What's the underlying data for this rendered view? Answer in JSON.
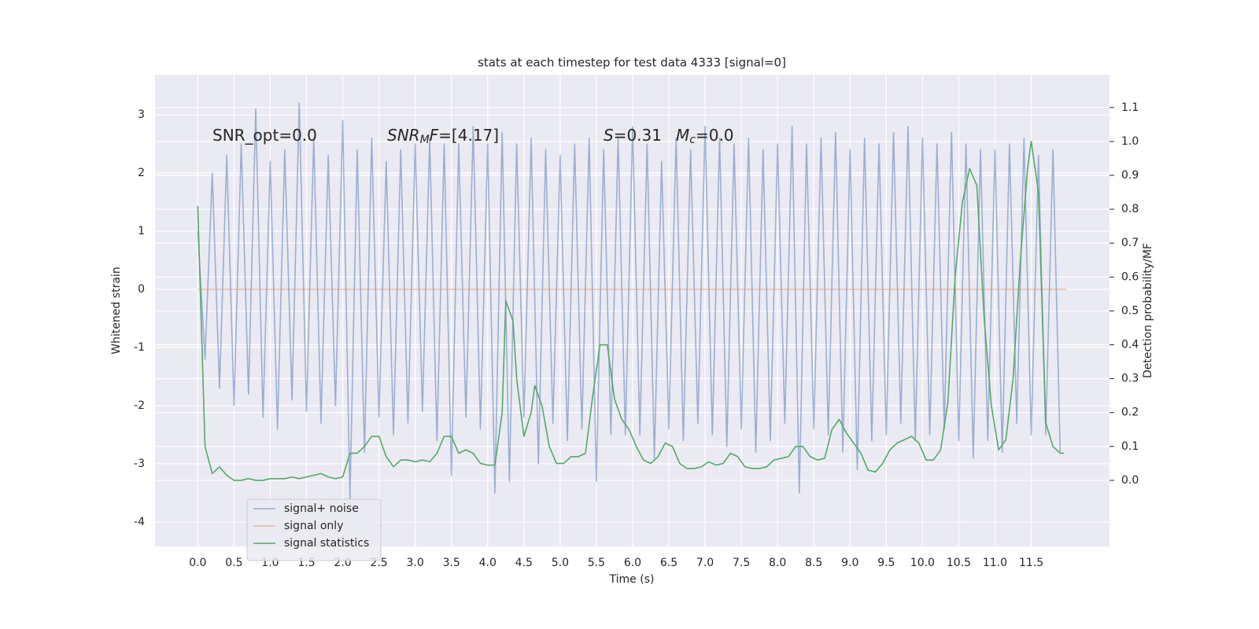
{
  "chart_data": {
    "type": "line",
    "title": "stats at each timestep for test data 4333 [signal=0]",
    "x_label": "Time (s)",
    "y_label": "Whitened strain",
    "y2_label": "Detection probability/MF",
    "grid": true,
    "legend": "lower left",
    "xlim": [
      -0.59,
      12.58
    ],
    "ylim": [
      -4.42,
      3.69
    ],
    "y2lim": [
      -0.195,
      1.197
    ],
    "xticks": [
      {
        "value": 0,
        "label": "0.0"
      },
      {
        "value": 0.5,
        "label": "0.5"
      },
      {
        "value": 1,
        "label": "1.0"
      },
      {
        "value": 1.5,
        "label": "1.5"
      },
      {
        "value": 2,
        "label": "2.0"
      },
      {
        "value": 2.5,
        "label": "2.5"
      },
      {
        "value": 3,
        "label": "3.0"
      },
      {
        "value": 3.5,
        "label": "3.5"
      },
      {
        "value": 4,
        "label": "4.0"
      },
      {
        "value": 4.5,
        "label": "4.5"
      },
      {
        "value": 5,
        "label": "5.0"
      },
      {
        "value": 5.5,
        "label": "5.5"
      },
      {
        "value": 6,
        "label": "6.0"
      },
      {
        "value": 6.5,
        "label": "6.5"
      },
      {
        "value": 7,
        "label": "7.0"
      },
      {
        "value": 7.5,
        "label": "7.5"
      },
      {
        "value": 8,
        "label": "8.0"
      },
      {
        "value": 8.5,
        "label": "8.5"
      },
      {
        "value": 9,
        "label": "9.0"
      },
      {
        "value": 9.5,
        "label": "9.5"
      },
      {
        "value": 10,
        "label": "10.0"
      },
      {
        "value": 10.5,
        "label": "10.5"
      },
      {
        "value": 11,
        "label": "11.0"
      },
      {
        "value": 11.5,
        "label": "11.5"
      }
    ],
    "yticks": [
      -4,
      -3,
      -2,
      -1,
      0,
      1,
      2,
      3
    ],
    "y2ticks": [
      {
        "value": 0,
        "label": "0.0"
      },
      {
        "value": 0.1,
        "label": "0.1"
      },
      {
        "value": 0.2,
        "label": "0.2"
      },
      {
        "value": 0.3,
        "label": "0.3"
      },
      {
        "value": 0.4,
        "label": "0.4"
      },
      {
        "value": 0.5,
        "label": "0.5"
      },
      {
        "value": 0.6,
        "label": "0.6"
      },
      {
        "value": 0.7,
        "label": "0.7"
      },
      {
        "value": 0.8,
        "label": "0.8"
      },
      {
        "value": 0.9,
        "label": "0.9"
      },
      {
        "value": 1,
        "label": "1.0"
      },
      {
        "value": 1.1,
        "label": "1.1"
      }
    ],
    "annotations": [
      [
        {
          "text": "SNR_opt=0.0"
        }
      ],
      [
        {
          "text": "SNR",
          "italic": true
        },
        {
          "text": "M",
          "italic": true,
          "sub": true
        },
        {
          "text": "F",
          "italic": true
        },
        {
          "text": "=[4.17]"
        }
      ],
      [
        {
          "text": "S",
          "italic": true
        },
        {
          "text": "=0.31"
        }
      ],
      [
        {
          "text": "M",
          "italic": true
        },
        {
          "text": "c",
          "italic": true,
          "sub": true
        },
        {
          "text": "=0.0"
        }
      ]
    ],
    "series": [
      {
        "name": "signal+ noise",
        "color": "#4c72b0",
        "opacity": 0.5,
        "x": [
          0,
          0.1,
          0.2,
          0.3,
          0.4,
          0.5,
          0.6,
          0.7,
          0.8,
          0.9,
          1,
          1.1,
          1.2,
          1.3,
          1.4,
          1.5,
          1.6,
          1.7,
          1.8,
          1.9,
          2,
          2.1,
          2.2,
          2.3,
          2.4,
          2.5,
          2.6,
          2.7,
          2.8,
          2.9,
          3,
          3.1,
          3.2,
          3.3,
          3.4,
          3.5,
          3.6,
          3.7,
          3.8,
          3.9,
          4,
          4.1,
          4.2,
          4.3,
          4.4,
          4.5,
          4.6,
          4.7,
          4.8,
          4.9,
          5,
          5.1,
          5.2,
          5.3,
          5.4,
          5.5,
          5.6,
          5.7,
          5.8,
          5.9,
          6,
          6.1,
          6.2,
          6.3,
          6.4,
          6.5,
          6.6,
          6.7,
          6.8,
          6.9,
          7,
          7.1,
          7.2,
          7.3,
          7.4,
          7.5,
          7.6,
          7.7,
          7.8,
          7.9,
          8,
          8.1,
          8.2,
          8.3,
          8.4,
          8.5,
          8.6,
          8.7,
          8.8,
          8.9,
          9,
          9.1,
          9.2,
          9.3,
          9.4,
          9.5,
          9.6,
          9.7,
          9.8,
          9.9,
          10,
          10.1,
          10.2,
          10.3,
          10.4,
          10.5,
          10.6,
          10.7,
          10.8,
          10.9,
          11,
          11.1,
          11.2,
          11.3,
          11.4,
          11.5,
          11.6,
          11.7,
          11.8,
          11.9
        ],
        "values": [
          1.0,
          -1.2,
          2.0,
          -1.7,
          2.3,
          -2.0,
          2.5,
          -1.8,
          3.1,
          -2.2,
          2.2,
          -2.4,
          2.4,
          -1.9,
          3.2,
          -2.1,
          2.6,
          -2.3,
          2.3,
          -2.0,
          2.9,
          -3.6,
          2.4,
          -2.8,
          2.6,
          -2.2,
          2.2,
          -2.5,
          2.4,
          -2.3,
          2.5,
          -2.1,
          2.6,
          -2.6,
          2.5,
          -3.2,
          2.5,
          -2.2,
          2.8,
          -2.4,
          2.5,
          -3.5,
          2.7,
          -3.3,
          2.5,
          -2.2,
          2.6,
          -3.0,
          2.4,
          -2.3,
          2.3,
          -2.6,
          2.5,
          -2.4,
          2.6,
          -3.3,
          2.4,
          -2.5,
          2.6,
          -2.5,
          2.8,
          -2.5,
          2.5,
          -2.9,
          2.2,
          -2.4,
          2.6,
          -2.6,
          2.4,
          -2.3,
          2.8,
          -2.5,
          2.6,
          -2.7,
          2.5,
          -2.4,
          2.6,
          -2.8,
          2.4,
          -2.6,
          2.5,
          -2.3,
          2.8,
          -3.5,
          2.5,
          -2.4,
          2.6,
          -2.5,
          2.7,
          -2.8,
          2.4,
          -3.1,
          2.6,
          -2.6,
          2.5,
          -2.5,
          2.7,
          -2.3,
          2.8,
          -2.6,
          2.6,
          -2.5,
          2.5,
          -2.4,
          2.7,
          -2.6,
          2.5,
          -2.9,
          2.4,
          -2.6,
          2.4,
          -2.8,
          2.5,
          -2.3,
          2.6,
          -2.5,
          2.3,
          -2.5,
          2.4,
          -2.8
        ]
      },
      {
        "name": "signal only",
        "color": "#dd8452",
        "opacity": 0.5,
        "x": [
          0,
          11.99
        ],
        "values": [
          0,
          0
        ]
      },
      {
        "name": "signal statistics",
        "color": "#55a868",
        "opacity": 1,
        "axis": "y2",
        "x": [
          0,
          0.1,
          0.2,
          0.3,
          0.4,
          0.5,
          0.6,
          0.7,
          0.8,
          0.9,
          1,
          1.1,
          1.2,
          1.3,
          1.4,
          1.5,
          1.6,
          1.7,
          1.8,
          1.9,
          2,
          2.1,
          2.2,
          2.3,
          2.4,
          2.5,
          2.6,
          2.7,
          2.8,
          2.9,
          3,
          3.1,
          3.2,
          3.3,
          3.4,
          3.5,
          3.6,
          3.7,
          3.8,
          3.9,
          4,
          4.1,
          4.2,
          4.25,
          4.35,
          4.4,
          4.5,
          4.6,
          4.65,
          4.75,
          4.85,
          4.95,
          5.05,
          5.15,
          5.25,
          5.35,
          5.45,
          5.55,
          5.65,
          5.75,
          5.85,
          5.95,
          6.05,
          6.15,
          6.25,
          6.35,
          6.45,
          6.55,
          6.65,
          6.75,
          6.85,
          6.95,
          7.05,
          7.15,
          7.25,
          7.35,
          7.45,
          7.55,
          7.65,
          7.75,
          7.85,
          7.95,
          8.05,
          8.15,
          8.25,
          8.35,
          8.45,
          8.55,
          8.65,
          8.75,
          8.85,
          8.95,
          9.05,
          9.15,
          9.25,
          9.35,
          9.45,
          9.55,
          9.65,
          9.75,
          9.85,
          9.95,
          10.05,
          10.15,
          10.25,
          10.35,
          10.45,
          10.55,
          10.65,
          10.75,
          10.85,
          10.95,
          11.05,
          11.15,
          11.25,
          11.35,
          11.45,
          11.5,
          11.6,
          11.7,
          11.8,
          11.9,
          11.95
        ],
        "values": [
          0.81,
          0.1,
          0.02,
          0.04,
          0.015,
          0.0,
          0.0,
          0.005,
          0.0,
          0.0,
          0.005,
          0.005,
          0.005,
          0.01,
          0.005,
          0.01,
          0.015,
          0.02,
          0.01,
          0.005,
          0.01,
          0.08,
          0.08,
          0.1,
          0.13,
          0.13,
          0.07,
          0.04,
          0.06,
          0.06,
          0.055,
          0.06,
          0.055,
          0.08,
          0.13,
          0.13,
          0.08,
          0.09,
          0.08,
          0.05,
          0.045,
          0.045,
          0.2,
          0.53,
          0.47,
          0.3,
          0.13,
          0.2,
          0.28,
          0.22,
          0.1,
          0.05,
          0.05,
          0.07,
          0.07,
          0.08,
          0.25,
          0.4,
          0.4,
          0.24,
          0.18,
          0.15,
          0.1,
          0.06,
          0.05,
          0.07,
          0.11,
          0.1,
          0.05,
          0.035,
          0.035,
          0.04,
          0.055,
          0.045,
          0.05,
          0.08,
          0.07,
          0.04,
          0.035,
          0.035,
          0.04,
          0.06,
          0.065,
          0.07,
          0.1,
          0.1,
          0.07,
          0.06,
          0.065,
          0.15,
          0.18,
          0.14,
          0.11,
          0.08,
          0.03,
          0.025,
          0.05,
          0.09,
          0.11,
          0.12,
          0.13,
          0.11,
          0.06,
          0.06,
          0.09,
          0.23,
          0.6,
          0.82,
          0.92,
          0.87,
          0.48,
          0.22,
          0.09,
          0.12,
          0.3,
          0.65,
          0.92,
          1.0,
          0.85,
          0.17,
          0.1,
          0.08,
          0.08
        ]
      }
    ]
  }
}
